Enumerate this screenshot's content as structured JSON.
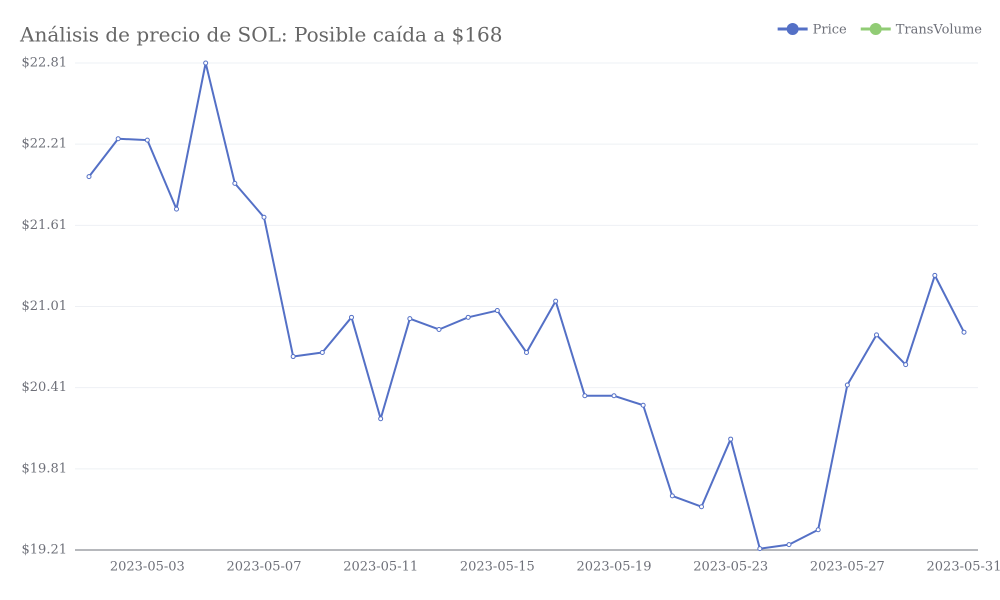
{
  "chart_data": {
    "type": "line",
    "title": "Análisis de precio de SOL: Posible caída a $168",
    "x": [
      null,
      null,
      "2023-05-03",
      null,
      null,
      null,
      "2023-05-07",
      null,
      null,
      null,
      "2023-05-11",
      null,
      null,
      null,
      "2023-05-15",
      null,
      null,
      null,
      "2023-05-19",
      null,
      null,
      null,
      "2023-05-23",
      null,
      null,
      null,
      "2023-05-27",
      null,
      null,
      null,
      "2023-05-31"
    ],
    "series": [
      {
        "name": "Price",
        "color": "#5470c6",
        "values": [
          21.97,
          22.25,
          22.24,
          21.73,
          22.81,
          21.92,
          21.67,
          20.64,
          20.67,
          20.93,
          20.18,
          20.92,
          20.84,
          20.93,
          20.98,
          20.67,
          21.05,
          20.35,
          20.35,
          20.28,
          19.61,
          19.53,
          20.03,
          19.22,
          19.25,
          19.36,
          20.43,
          20.8,
          20.58,
          21.24,
          20.82
        ]
      },
      {
        "name": "TransVolume",
        "color": "#91cc75",
        "values": [
          null,
          null,
          null,
          null,
          null,
          null,
          null,
          null,
          null,
          null,
          null,
          null,
          null,
          null,
          null,
          null,
          null,
          null,
          null,
          null,
          null,
          null,
          null,
          null,
          null,
          null,
          null,
          null,
          null,
          null,
          null
        ]
      }
    ],
    "ylim": [
      19.21,
      22.81
    ],
    "yticks": [
      {
        "value": 19.21,
        "label": "$19.21"
      },
      {
        "value": 19.81,
        "label": "$19.81"
      },
      {
        "value": 20.41,
        "label": "$20.41"
      },
      {
        "value": 21.01,
        "label": "$21.01"
      },
      {
        "value": 21.61,
        "label": "$21.61"
      },
      {
        "value": 22.21,
        "label": "$22.21"
      },
      {
        "value": 22.81,
        "label": "$22.81"
      }
    ],
    "grid": true,
    "legend": "top-right"
  }
}
